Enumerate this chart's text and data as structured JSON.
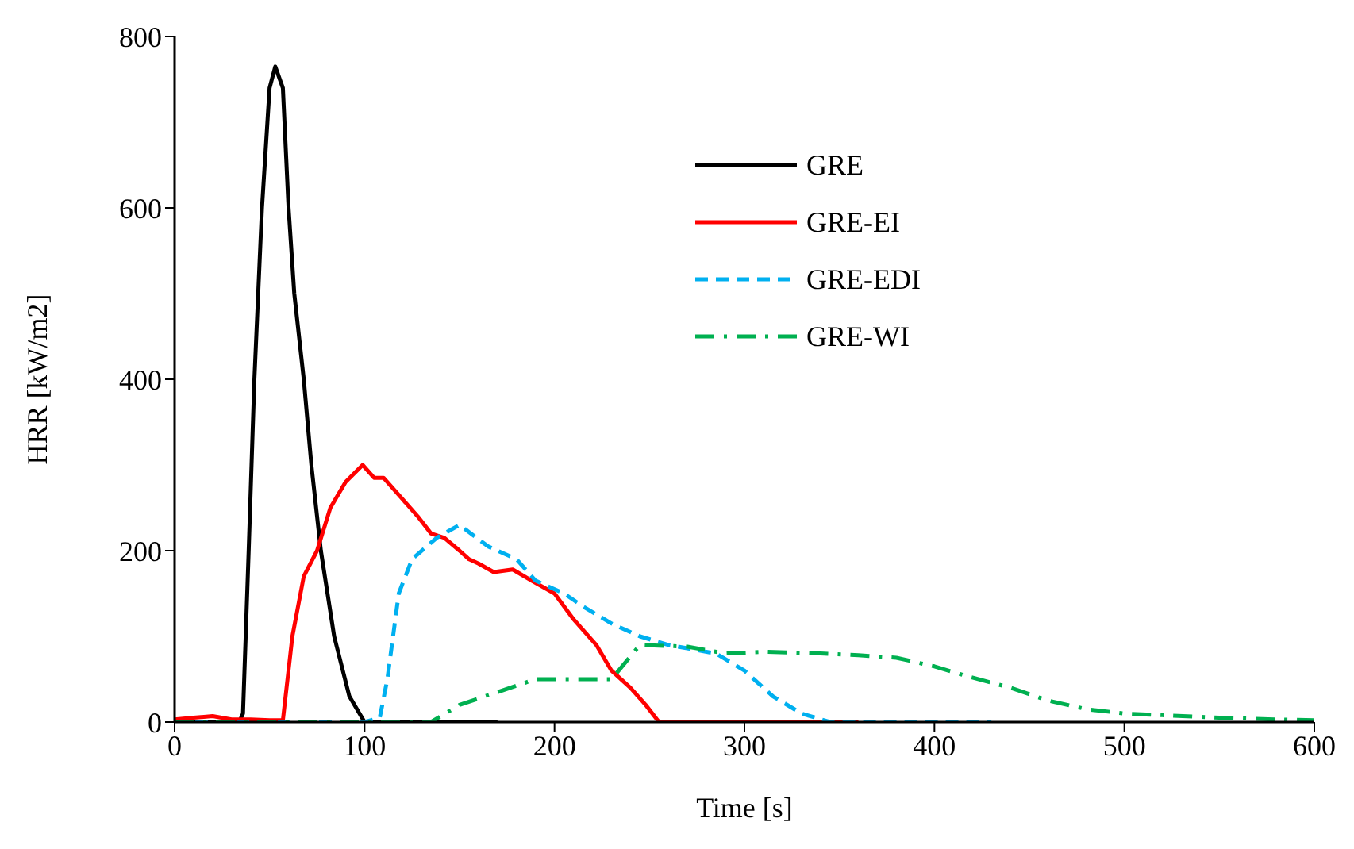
{
  "chart_data": {
    "type": "line",
    "xlabel": "Time [s]",
    "ylabel": "HRR [kW/m2]",
    "xlim": [
      0,
      600
    ],
    "xticks": [
      0,
      100,
      200,
      300,
      400,
      500,
      600
    ],
    "ylim": [
      0,
      800
    ],
    "yticks": [
      0,
      200,
      400,
      600,
      800
    ],
    "legend": "top right",
    "marker": "none",
    "series": [
      {
        "name": "GRE",
        "color": "#000000",
        "line_style": "solid",
        "x": [
          0,
          20,
          34,
          36,
          39,
          42,
          46,
          50,
          53,
          57,
          60,
          63,
          68,
          72,
          77,
          84,
          92,
          100,
          130,
          170
        ],
        "values": [
          0,
          0,
          0,
          10,
          200,
          400,
          600,
          740,
          765,
          740,
          600,
          500,
          400,
          300,
          200,
          100,
          30,
          0,
          0,
          0
        ]
      },
      {
        "name": "GRE-EI",
        "color": "#ff0000",
        "line_style": "solid",
        "x": [
          0,
          10,
          20,
          30,
          40,
          50,
          57,
          62,
          68,
          75,
          82,
          90,
          99,
          105,
          110,
          120,
          128,
          135,
          142,
          150,
          155,
          160,
          168,
          178,
          188,
          200,
          210,
          222,
          230,
          240,
          248,
          255,
          300,
          360
        ],
        "values": [
          3,
          5,
          7,
          3,
          3,
          2,
          2,
          100,
          170,
          200,
          250,
          280,
          300,
          285,
          285,
          260,
          240,
          220,
          215,
          200,
          190,
          185,
          175,
          178,
          165,
          150,
          120,
          90,
          60,
          40,
          20,
          0,
          0,
          0
        ]
      },
      {
        "name": "GRE-EDI",
        "color": "#00b0f0",
        "line_style": "dashed",
        "x": [
          0,
          50,
          100,
          108,
          112,
          118,
          125,
          138,
          150,
          165,
          180,
          190,
          205,
          215,
          230,
          245,
          260,
          285,
          300,
          315,
          330,
          345,
          400,
          430
        ],
        "values": [
          0,
          0,
          0,
          5,
          50,
          150,
          190,
          215,
          230,
          205,
          190,
          165,
          150,
          135,
          115,
          100,
          90,
          80,
          60,
          30,
          10,
          0,
          0,
          0
        ]
      },
      {
        "name": "GRE-WI",
        "color": "#00b050",
        "line_style": "dashdot",
        "x": [
          0,
          50,
          100,
          135,
          150,
          170,
          190,
          210,
          230,
          245,
          270,
          290,
          310,
          340,
          360,
          380,
          400,
          415,
          440,
          460,
          480,
          500,
          520,
          550,
          580,
          600
        ],
        "values": [
          0,
          0,
          0,
          0,
          20,
          35,
          50,
          50,
          50,
          90,
          88,
          80,
          82,
          80,
          78,
          75,
          65,
          55,
          40,
          25,
          15,
          10,
          8,
          5,
          3,
          2
        ]
      }
    ]
  }
}
